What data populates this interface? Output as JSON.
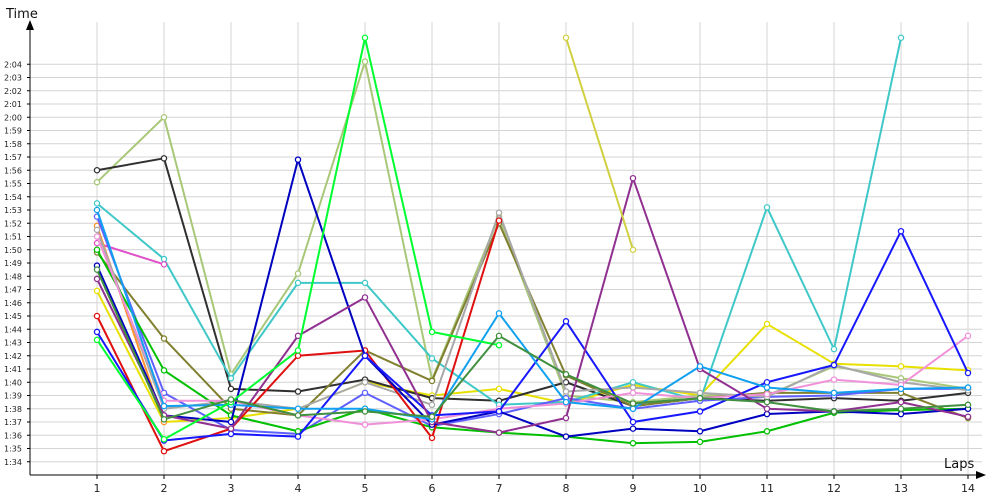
{
  "chart_data": {
    "type": "line",
    "xlabel": "Laps",
    "ylabel": "Time",
    "x": [
      1,
      2,
      3,
      4,
      5,
      6,
      7,
      8,
      9,
      10,
      11,
      12,
      13,
      14
    ],
    "xlim": [
      0,
      14.15
    ],
    "ylim": [
      "1:33",
      "2:05"
    ],
    "yticks": [
      "1:34",
      "1:35",
      "1:36",
      "1:37",
      "1:38",
      "1:39",
      "1:40",
      "1:41",
      "1:42",
      "1:43",
      "1:44",
      "1:45",
      "1:46",
      "1:47",
      "1:48",
      "1:49",
      "1:50",
      "1:51",
      "1:52",
      "1:53",
      "1:54",
      "1:55",
      "1:56",
      "1:57",
      "1:58",
      "1:59",
      "2:00",
      "2:01",
      "2:02",
      "2:03",
      "2:04"
    ],
    "grid": true,
    "legend": "none",
    "series": [
      {
        "color": "#e8e000",
        "values": [
          "1:46.9",
          "1:37.0",
          "1:37.3",
          "1:38.0",
          "1:40.0",
          "1:39.0",
          "1:39.5",
          "1:38.4",
          "1:39.8",
          "1:39.0",
          "1:44.4",
          "1:41.4",
          "1:41.2",
          "1:40.9"
        ]
      },
      {
        "color": "#a8c878",
        "values": [
          "1:55.1",
          "2:00.0",
          "1:40.6",
          "1:48.2",
          "2:04.2",
          "1:40.2",
          "1:52.5",
          "1:39.0",
          "1:38.5",
          "1:39.0",
          "1:39.0",
          "1:41.2",
          "1:40.3",
          "1:39.5"
        ]
      },
      {
        "color": "#303030",
        "values": [
          "1:56.0",
          "1:56.9",
          "1:39.5",
          "1:39.3",
          "1:40.2",
          "1:38.8",
          "1:38.6",
          "1:40.0",
          "1:38.2",
          "1:38.8",
          "1:38.6",
          "1:38.8",
          "1:38.6",
          "1:39.2"
        ]
      },
      {
        "color": "#40c8c8",
        "values": [
          "1:53.5",
          "1:49.3",
          "1:40.3",
          "1:47.5",
          "1:47.5",
          "1:41.8",
          "1:38.3",
          "1:38.5",
          "1:40.0",
          "1:38.6",
          "1:53.2",
          "1:42.5",
          "2:06.0",
          null
        ]
      },
      {
        "color": "#e050c8",
        "values": [
          "1:50.5",
          "1:48.9",
          null,
          null,
          null,
          null,
          null,
          null,
          null,
          null,
          null,
          null,
          null,
          null
        ]
      },
      {
        "color": "#808030",
        "values": [
          "1:49.8",
          "1:43.3",
          "1:38.0",
          "1:37.5",
          "1:42.4",
          "1:40.1",
          "1:52.0",
          "1:40.5",
          "1:38.2",
          "1:38.8",
          "1:39.2",
          "1:39.2",
          "1:39.2",
          "1:37.3"
        ]
      },
      {
        "color": "#ff9030",
        "values": [
          "1:51.8",
          "1:37.0",
          null,
          null,
          null,
          null,
          null,
          null,
          null,
          null,
          null,
          null,
          null,
          null
        ]
      },
      {
        "color": "#6060ff",
        "values": [
          "1:52.5",
          "1:39.2",
          "1:36.4",
          "1:36.1",
          "1:39.2",
          "1:36.7",
          "1:37.6",
          "1:38.8",
          "1:38.0",
          "1:38.6",
          "1:38.9",
          "1:39.0",
          "1:39.5",
          "1:39.5"
        ]
      },
      {
        "color": "#a8a8a8",
        "values": [
          "1:51.5",
          "1:38.0",
          "1:38.6",
          "1:38.0",
          "1:40.0",
          "1:38.3",
          "1:52.8",
          "1:39.3",
          "1:39.6",
          "1:39.2",
          "1:38.9",
          "1:41.3",
          "1:40.0",
          "1:39.4"
        ]
      },
      {
        "color": "#00c000",
        "values": [
          "1:50.0",
          "1:40.9",
          "1:37.5",
          "1:36.3",
          "1:38.0",
          "1:36.6",
          "1:36.2",
          "1:35.9",
          "1:35.4",
          "1:35.5",
          "1:36.3",
          "1:37.7",
          "1:37.9",
          "1:38.0"
        ]
      },
      {
        "color": "#f090d8",
        "values": [
          "1:51.0",
          "1:38.6",
          "1:38.6",
          "1:37.5",
          "1:36.8",
          "1:37.2",
          "1:38.0",
          "1:38.4",
          "1:39.2",
          "1:38.8",
          "1:39.1",
          "1:40.2",
          "1:39.8",
          "1:43.5"
        ]
      },
      {
        "color": "#e01010",
        "values": [
          "1:45.0",
          "1:34.8",
          "1:36.5",
          "1:42.0",
          "1:42.4",
          "1:35.8",
          "1:52.2",
          null,
          null,
          null,
          null,
          null,
          null,
          null
        ]
      },
      {
        "color": "#0000c0",
        "values": [
          "1:48.8",
          "1:37.5",
          "1:37.0",
          "1:56.8",
          "1:42.0",
          "1:36.8",
          "1:37.8",
          "1:35.9",
          "1:36.5",
          "1:36.3",
          "1:37.6",
          "1:37.8",
          "1:37.6",
          "1:38.0"
        ]
      },
      {
        "color": "#1818ff",
        "values": [
          "1:43.8",
          "1:35.6",
          "1:36.1",
          "1:35.9",
          "1:42.0",
          "1:37.5",
          "1:37.8",
          "1:44.6",
          "1:37.0",
          "1:37.8",
          "1:40.0",
          "1:41.3",
          "1:51.4",
          "1:40.7"
        ]
      },
      {
        "color": "#903090",
        "values": [
          "1:47.8",
          "1:37.5",
          "1:36.5",
          "1:43.5",
          "1:46.4",
          "1:37.0",
          "1:36.2",
          "1:37.3",
          "1:55.4",
          "1:41.0",
          "1:38.0",
          "1:37.8",
          "1:38.5",
          "1:37.4"
        ]
      },
      {
        "color": "#10a0f0",
        "values": [
          "1:53.0",
          "1:38.2",
          "1:38.3",
          "1:38.0",
          "1:38.0",
          "1:37.2",
          "1:45.2",
          "1:38.5",
          "1:38.0",
          "1:41.2",
          "1:39.6",
          "1:39.2",
          "1:39.5",
          "1:39.6"
        ]
      },
      {
        "color": "#00ff30",
        "values": [
          "1:43.2",
          "1:35.7",
          "1:38.5",
          "1:42.4",
          "2:06.0",
          "1:43.8",
          "1:42.8",
          null,
          null,
          null,
          null,
          null,
          null,
          null
        ]
      },
      {
        "color": "#409040",
        "values": [
          "1:48.5",
          "1:37.2",
          "1:38.7",
          "1:37.5",
          "1:37.8",
          "1:37.4",
          "1:43.5",
          "1:40.6",
          "1:38.4",
          "1:38.8",
          "1:38.5",
          "1:37.8",
          "1:38.0",
          "1:38.3"
        ]
      },
      {
        "color": "#d0d040",
        "values": [
          null,
          null,
          null,
          null,
          null,
          null,
          null,
          "2:06.0",
          "1:50.0",
          null,
          null,
          null,
          null,
          null
        ]
      }
    ]
  }
}
